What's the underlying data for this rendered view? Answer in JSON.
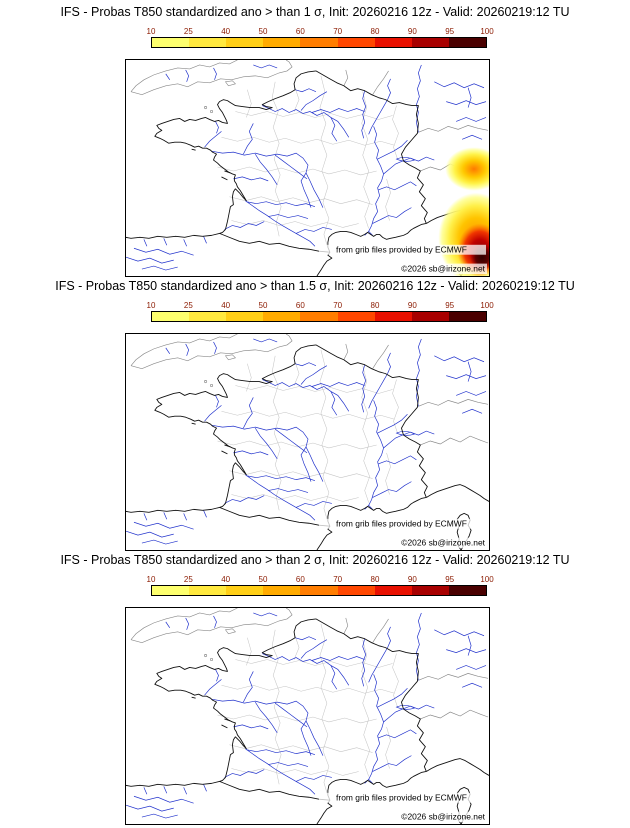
{
  "colorbar": {
    "tick_labels": [
      "10",
      "25",
      "40",
      "50",
      "60",
      "70",
      "80",
      "90",
      "95",
      "100"
    ],
    "segment_colors": [
      "#fdff6e",
      "#ffe93f",
      "#ffcf17",
      "#ffab00",
      "#ff7d00",
      "#ff4700",
      "#e81000",
      "#a80000",
      "#4a0000"
    ],
    "label_color": "#8b1a00",
    "border_color": "#000000"
  },
  "panels": [
    {
      "title": "IFS - Probas T850  standardized ano > than 1 σ, Init: 20260216 12z - Valid: 20260219:12 TU",
      "has_anomaly": true
    },
    {
      "title": "IFS - Probas T850  standardized ano > than 1.5 σ, Init: 20260216 12z - Valid: 20260219:12 TU",
      "has_anomaly": false
    },
    {
      "title": "IFS - Probas T850  standardized ano > than 2 σ, Init: 20260216 12z - Valid: 20260219:12 TU",
      "has_anomaly": false
    }
  ],
  "map": {
    "credit_line": "from grib files provided by ECMWF",
    "copyright_line": "©2026 sb@irizone.net",
    "river_color": "#2233cc",
    "coast_color": "#111111",
    "admin_border_color": "#c6c6c6",
    "anomaly_colors": {
      "low": "#ffff8c",
      "mid": "#ff9000",
      "high": "#c00000",
      "extreme": "#2e0000"
    }
  }
}
